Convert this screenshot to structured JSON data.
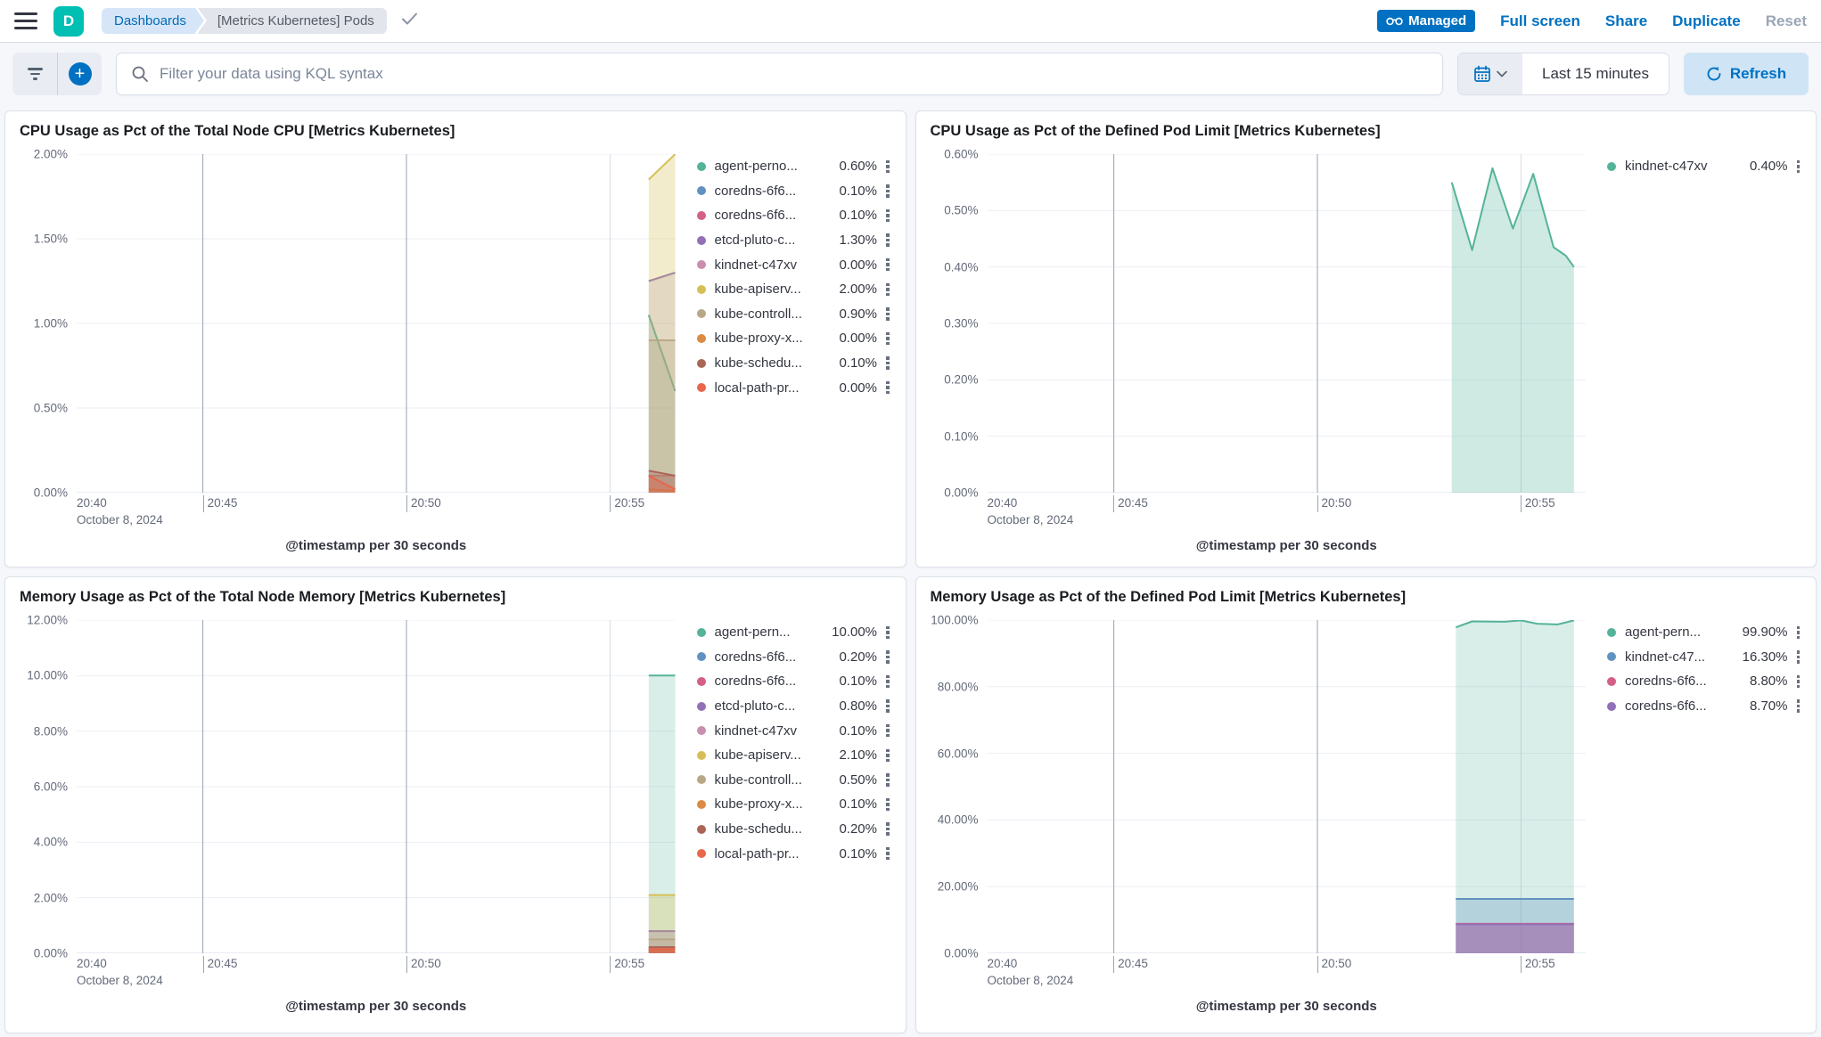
{
  "header": {
    "logo_letter": "D",
    "breadcrumbs": [
      {
        "label": "Dashboards"
      },
      {
        "label": "[Metrics Kubernetes] Pods"
      }
    ],
    "managed_badge": "Managed",
    "actions": {
      "full_screen": "Full screen",
      "share": "Share",
      "duplicate": "Duplicate",
      "reset": "Reset"
    }
  },
  "toolbar": {
    "search_placeholder": "Filter your data using KQL syntax",
    "time_range": "Last 15 minutes",
    "refresh_label": "Refresh"
  },
  "colors": {
    "accent_blue": "#0071C2",
    "badge_blue": "#0071C2",
    "refresh_bg": "#CFE5F6",
    "avatar_teal": "#00BFB3",
    "grid_light": "#ECEFF4",
    "grid_strong": "#98A2B3",
    "axis_text": "#646A79"
  },
  "chart_data": [
    {
      "type": "area",
      "title": "CPU Usage as Pct of the Total Node CPU [Metrics Kubernetes]",
      "xlabel": "@timestamp per 30 seconds",
      "ylabel": "",
      "ylim": [
        0,
        2
      ],
      "yticks": [
        {
          "v": 2,
          "label": "2.00%"
        },
        {
          "v": 1.5,
          "label": "1.50%"
        },
        {
          "v": 1,
          "label": "1.00%"
        },
        {
          "v": 0.5,
          "label": "0.50%"
        },
        {
          "v": 0,
          "label": "0.00%"
        }
      ],
      "x_unit": "minutes after 20:40",
      "xlim": [
        1.9,
        16.6
      ],
      "xticks": [
        {
          "t": 1.9,
          "label": "20:40",
          "sublabel": "October 8, 2024",
          "edge": true
        },
        {
          "t": 5,
          "label": "20:45",
          "strong": true
        },
        {
          "t": 10,
          "label": "20:50",
          "strong": true
        },
        {
          "t": 15,
          "label": "20:55"
        }
      ],
      "legend": [
        {
          "label": "agent-perno...",
          "value": "0.60%",
          "color": "#54B399"
        },
        {
          "label": "coredns-6f6...",
          "value": "0.10%",
          "color": "#6092C0"
        },
        {
          "label": "coredns-6f6...",
          "value": "0.10%",
          "color": "#D36086"
        },
        {
          "label": "etcd-pluto-c...",
          "value": "1.30%",
          "color": "#9170B8"
        },
        {
          "label": "kindnet-c47xv",
          "value": "0.00%",
          "color": "#CA8EAE"
        },
        {
          "label": "kube-apiserv...",
          "value": "2.00%",
          "color": "#D6BF57"
        },
        {
          "label": "kube-controll...",
          "value": "0.90%",
          "color": "#B9A888"
        },
        {
          "label": "kube-proxy-x...",
          "value": "0.00%",
          "color": "#DA8B45"
        },
        {
          "label": "kube-schedu...",
          "value": "0.10%",
          "color": "#AA6556"
        },
        {
          "label": "local-path-pr...",
          "value": "0.00%",
          "color": "#E7664C"
        }
      ],
      "series": [
        {
          "name": "agent-perno",
          "color": "#54B399",
          "fill_opacity": 0.2,
          "points": [
            [
              15.95,
              1.05
            ],
            [
              16.6,
              0.6
            ]
          ]
        },
        {
          "name": "coredns-1",
          "color": "#6092C0",
          "fill_opacity": 0.2,
          "points": [
            [
              15.95,
              0.1
            ],
            [
              16.6,
              0.1
            ]
          ]
        },
        {
          "name": "coredns-2",
          "color": "#D36086",
          "fill_opacity": 0.2,
          "points": [
            [
              15.95,
              0.1
            ],
            [
              16.6,
              0.1
            ]
          ]
        },
        {
          "name": "etcd-pluto",
          "color": "#9170B8",
          "fill_opacity": 0.2,
          "points": [
            [
              15.95,
              1.25
            ],
            [
              16.6,
              1.3
            ]
          ]
        },
        {
          "name": "kindnet",
          "color": "#CA8EAE",
          "fill_opacity": 0.2,
          "points": [
            [
              15.95,
              0.0
            ],
            [
              16.6,
              0.0
            ]
          ]
        },
        {
          "name": "kube-apiserver",
          "color": "#D6BF57",
          "fill_opacity": 0.3,
          "points": [
            [
              15.95,
              1.85
            ],
            [
              16.6,
              2.0
            ]
          ]
        },
        {
          "name": "kube-controller",
          "color": "#B9A888",
          "fill_opacity": 0.3,
          "points": [
            [
              15.95,
              0.9
            ],
            [
              16.6,
              0.9
            ]
          ]
        },
        {
          "name": "kube-proxy",
          "color": "#DA8B45",
          "fill_opacity": 0.2,
          "points": [
            [
              15.95,
              0.02
            ],
            [
              16.6,
              0.01
            ]
          ]
        },
        {
          "name": "kube-scheduler",
          "color": "#AA6556",
          "fill_opacity": 0.35,
          "points": [
            [
              15.95,
              0.13
            ],
            [
              16.6,
              0.1
            ]
          ]
        },
        {
          "name": "local-path",
          "color": "#E7664C",
          "fill_opacity": 0.4,
          "points": [
            [
              15.95,
              0.1
            ],
            [
              16.6,
              0.02
            ]
          ]
        }
      ]
    },
    {
      "type": "area",
      "title": "CPU Usage as Pct of the Defined Pod Limit [Metrics Kubernetes]",
      "xlabel": "@timestamp per 30 seconds",
      "ylabel": "",
      "ylim": [
        0,
        0.6
      ],
      "yticks": [
        {
          "v": 0.6,
          "label": "0.60%"
        },
        {
          "v": 0.5,
          "label": "0.50%"
        },
        {
          "v": 0.4,
          "label": "0.40%"
        },
        {
          "v": 0.3,
          "label": "0.30%"
        },
        {
          "v": 0.2,
          "label": "0.20%"
        },
        {
          "v": 0.1,
          "label": "0.10%"
        },
        {
          "v": 0,
          "label": "0.00%"
        }
      ],
      "x_unit": "minutes after 20:40",
      "xlim": [
        1.9,
        16.6
      ],
      "xticks": [
        {
          "t": 1.9,
          "label": "20:40",
          "sublabel": "October 8, 2024",
          "edge": true
        },
        {
          "t": 5,
          "label": "20:45",
          "strong": true
        },
        {
          "t": 10,
          "label": "20:50",
          "strong": true
        },
        {
          "t": 15,
          "label": "20:55"
        }
      ],
      "legend": [
        {
          "label": "kindnet-c47xv",
          "value": "0.40%",
          "color": "#54B399"
        }
      ],
      "series": [
        {
          "name": "kindnet-c47xv",
          "color": "#54B399",
          "fill_opacity": 0.28,
          "points": [
            [
              13.3,
              0.55
            ],
            [
              13.8,
              0.43
            ],
            [
              14.3,
              0.575
            ],
            [
              14.8,
              0.468
            ],
            [
              15.3,
              0.565
            ],
            [
              15.8,
              0.435
            ],
            [
              16.1,
              0.42
            ],
            [
              16.3,
              0.4
            ]
          ]
        }
      ]
    },
    {
      "type": "area",
      "title": "Memory Usage as Pct of the Total Node Memory [Metrics Kubernetes]",
      "xlabel": "@timestamp per 30 seconds",
      "ylabel": "",
      "ylim": [
        0,
        12
      ],
      "yticks": [
        {
          "v": 12,
          "label": "12.00%"
        },
        {
          "v": 10,
          "label": "10.00%"
        },
        {
          "v": 8,
          "label": "8.00%"
        },
        {
          "v": 6,
          "label": "6.00%"
        },
        {
          "v": 4,
          "label": "4.00%"
        },
        {
          "v": 2,
          "label": "2.00%"
        },
        {
          "v": 0,
          "label": "0.00%"
        }
      ],
      "x_unit": "minutes after 20:40",
      "xlim": [
        1.9,
        16.6
      ],
      "xticks": [
        {
          "t": 1.9,
          "label": "20:40",
          "sublabel": "October 8, 2024",
          "edge": true
        },
        {
          "t": 5,
          "label": "20:45",
          "strong": true
        },
        {
          "t": 10,
          "label": "20:50",
          "strong": true
        },
        {
          "t": 15,
          "label": "20:55"
        }
      ],
      "legend": [
        {
          "label": "agent-pern...",
          "value": "10.00%",
          "color": "#54B399"
        },
        {
          "label": "coredns-6f6...",
          "value": "0.20%",
          "color": "#6092C0"
        },
        {
          "label": "coredns-6f6...",
          "value": "0.10%",
          "color": "#D36086"
        },
        {
          "label": "etcd-pluto-c...",
          "value": "0.80%",
          "color": "#9170B8"
        },
        {
          "label": "kindnet-c47xv",
          "value": "0.10%",
          "color": "#CA8EAE"
        },
        {
          "label": "kube-apiserv...",
          "value": "2.10%",
          "color": "#D6BF57"
        },
        {
          "label": "kube-controll...",
          "value": "0.50%",
          "color": "#B9A888"
        },
        {
          "label": "kube-proxy-x...",
          "value": "0.10%",
          "color": "#DA8B45"
        },
        {
          "label": "kube-schedu...",
          "value": "0.20%",
          "color": "#AA6556"
        },
        {
          "label": "local-path-pr...",
          "value": "0.10%",
          "color": "#E7664C"
        }
      ],
      "series": [
        {
          "name": "agent-pern",
          "color": "#54B399",
          "fill_opacity": 0.22,
          "points": [
            [
              15.95,
              10.0
            ],
            [
              16.6,
              10.0
            ]
          ]
        },
        {
          "name": "coredns-1",
          "color": "#6092C0",
          "fill_opacity": 0.25,
          "points": [
            [
              15.95,
              0.2
            ],
            [
              16.6,
              0.2
            ]
          ]
        },
        {
          "name": "coredns-2",
          "color": "#D36086",
          "fill_opacity": 0.25,
          "points": [
            [
              15.95,
              0.1
            ],
            [
              16.6,
              0.1
            ]
          ]
        },
        {
          "name": "etcd-pluto",
          "color": "#9170B8",
          "fill_opacity": 0.35,
          "points": [
            [
              15.95,
              0.8
            ],
            [
              16.6,
              0.8
            ]
          ]
        },
        {
          "name": "kindnet",
          "color": "#CA8EAE",
          "fill_opacity": 0.2,
          "points": [
            [
              15.95,
              0.1
            ],
            [
              16.6,
              0.1
            ]
          ]
        },
        {
          "name": "kube-apiserver",
          "color": "#D6BF57",
          "fill_opacity": 0.3,
          "points": [
            [
              15.95,
              2.1
            ],
            [
              16.6,
              2.1
            ]
          ]
        },
        {
          "name": "kube-controller",
          "color": "#B9A888",
          "fill_opacity": 0.3,
          "points": [
            [
              15.95,
              0.5
            ],
            [
              16.6,
              0.5
            ]
          ]
        },
        {
          "name": "kube-proxy",
          "color": "#DA8B45",
          "fill_opacity": 0.3,
          "points": [
            [
              15.95,
              0.1
            ],
            [
              16.6,
              0.1
            ]
          ]
        },
        {
          "name": "kube-scheduler",
          "color": "#AA6556",
          "fill_opacity": 0.5,
          "points": [
            [
              15.95,
              0.22
            ],
            [
              16.6,
              0.22
            ]
          ]
        },
        {
          "name": "local-path",
          "color": "#E7664C",
          "fill_opacity": 0.5,
          "points": [
            [
              15.95,
              0.15
            ],
            [
              16.6,
              0.15
            ]
          ]
        }
      ]
    },
    {
      "type": "area",
      "title": "Memory Usage as Pct of the Defined Pod Limit [Metrics Kubernetes]",
      "xlabel": "@timestamp per 30 seconds",
      "ylabel": "",
      "ylim": [
        0,
        100
      ],
      "yticks": [
        {
          "v": 100,
          "label": "100.00%"
        },
        {
          "v": 80,
          "label": "80.00%"
        },
        {
          "v": 60,
          "label": "60.00%"
        },
        {
          "v": 40,
          "label": "40.00%"
        },
        {
          "v": 20,
          "label": "20.00%"
        },
        {
          "v": 0,
          "label": "0.00%"
        }
      ],
      "x_unit": "minutes after 20:40",
      "xlim": [
        1.9,
        16.6
      ],
      "xticks": [
        {
          "t": 1.9,
          "label": "20:40",
          "sublabel": "October 8, 2024",
          "edge": true
        },
        {
          "t": 5,
          "label": "20:45",
          "strong": true
        },
        {
          "t": 10,
          "label": "20:50",
          "strong": true
        },
        {
          "t": 15,
          "label": "20:55"
        }
      ],
      "legend": [
        {
          "label": "agent-pern...",
          "value": "99.90%",
          "color": "#54B399"
        },
        {
          "label": "kindnet-c47...",
          "value": "16.30%",
          "color": "#6092C0"
        },
        {
          "label": "coredns-6f6...",
          "value": "8.80%",
          "color": "#D36086"
        },
        {
          "label": "coredns-6f6...",
          "value": "8.70%",
          "color": "#9170B8"
        }
      ],
      "series": [
        {
          "name": "agent-pern",
          "color": "#54B399",
          "fill_opacity": 0.22,
          "points": [
            [
              13.4,
              97.8
            ],
            [
              13.8,
              99.6
            ],
            [
              14.6,
              99.5
            ],
            [
              15.0,
              99.9
            ],
            [
              15.4,
              98.9
            ],
            [
              15.9,
              98.7
            ],
            [
              16.3,
              99.9
            ]
          ]
        },
        {
          "name": "kindnet",
          "color": "#6092C0",
          "fill_opacity": 0.3,
          "points": [
            [
              13.4,
              16.3
            ],
            [
              16.3,
              16.3
            ]
          ]
        },
        {
          "name": "coredns-1",
          "color": "#D36086",
          "fill_opacity": 0.3,
          "points": [
            [
              13.4,
              8.85
            ],
            [
              16.3,
              8.85
            ]
          ]
        },
        {
          "name": "coredns-2",
          "color": "#9170B8",
          "fill_opacity": 0.5,
          "points": [
            [
              13.4,
              8.7
            ],
            [
              16.3,
              8.7
            ]
          ]
        }
      ]
    }
  ]
}
